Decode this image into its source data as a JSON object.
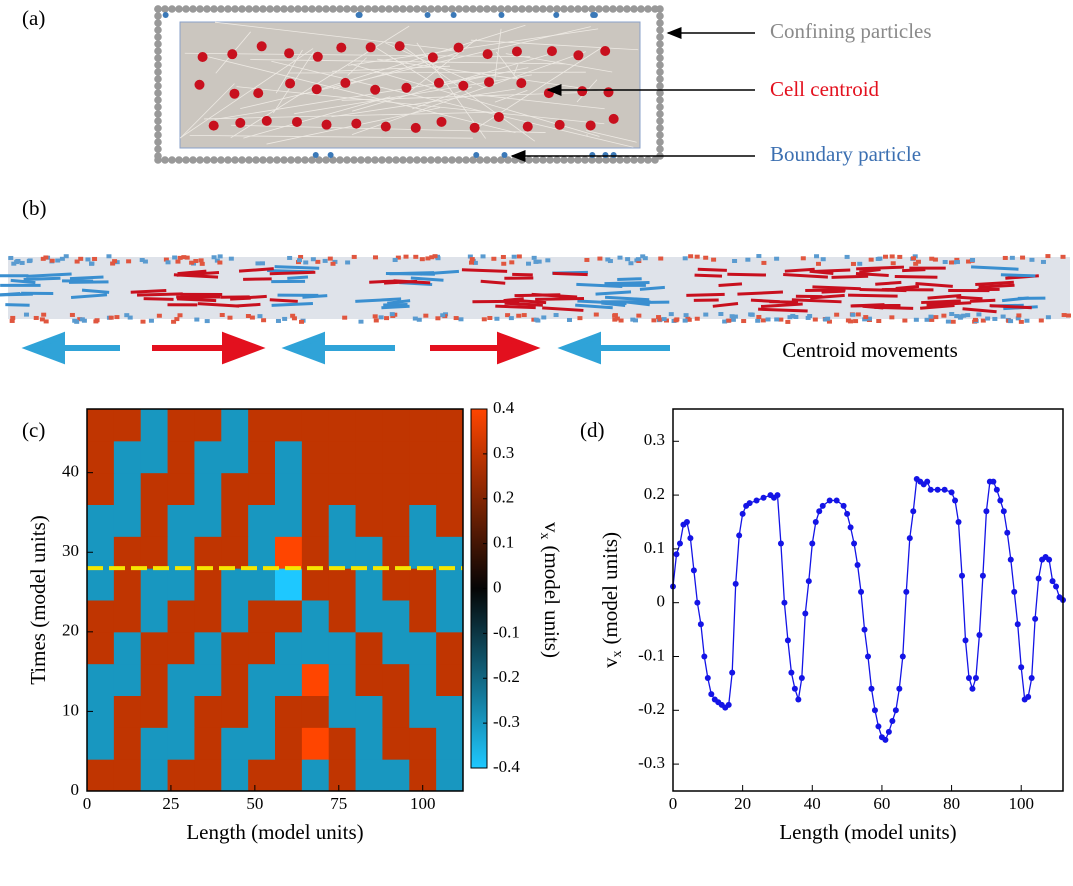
{
  "panels": {
    "a": "(a)",
    "b": "(b)",
    "c": "(c)",
    "d": "(d)"
  },
  "annotations": {
    "confining": "Confining particles",
    "centroid": "Cell centroid",
    "boundary": "Boundary particle",
    "movements": "Centroid movements"
  },
  "chart_data": [
    {
      "type": "heatmap",
      "xlabel": "Length (model units)",
      "ylabel": "Times (model units)",
      "colorbar_label": {
        "main": "v",
        "sub": "x",
        "rest": "(model units)"
      },
      "x": [
        4,
        12,
        20,
        28,
        36,
        44,
        52,
        60,
        68,
        76,
        84,
        92,
        100,
        108
      ],
      "y": [
        2,
        6,
        10,
        14,
        18,
        22,
        26,
        30,
        34,
        38,
        42,
        46
      ],
      "z": [
        [
          0.3,
          0.3,
          -0.3,
          0.3,
          0.3,
          -0.3,
          0.3,
          0.3,
          -0.3,
          0.3,
          -0.3,
          -0.3,
          0.3,
          -0.3
        ],
        [
          -0.3,
          0.3,
          -0.3,
          -0.3,
          0.3,
          -0.3,
          -0.3,
          0.3,
          0.4,
          0.3,
          -0.3,
          0.3,
          0.3,
          -0.3
        ],
        [
          -0.3,
          0.3,
          0.3,
          -0.3,
          0.3,
          0.3,
          -0.3,
          0.3,
          0.3,
          -0.3,
          -0.3,
          0.3,
          -0.3,
          -0.3
        ],
        [
          -0.3,
          -0.3,
          0.3,
          -0.3,
          -0.3,
          0.3,
          -0.3,
          -0.3,
          0.4,
          -0.3,
          0.3,
          0.3,
          -0.3,
          0.3
        ],
        [
          0.3,
          -0.3,
          0.3,
          0.3,
          -0.3,
          0.3,
          0.3,
          -0.3,
          -0.3,
          -0.3,
          0.3,
          -0.3,
          -0.3,
          0.3
        ],
        [
          0.3,
          0.3,
          -0.3,
          0.3,
          0.3,
          -0.3,
          0.3,
          0.3,
          -0.3,
          0.3,
          -0.3,
          -0.3,
          0.3,
          -0.3
        ],
        [
          -0.3,
          0.3,
          -0.3,
          -0.3,
          0.3,
          -0.3,
          -0.3,
          -0.4,
          0.3,
          0.3,
          -0.3,
          0.3,
          0.3,
          -0.3
        ],
        [
          -0.3,
          0.3,
          0.3,
          -0.3,
          0.3,
          0.3,
          -0.3,
          0.4,
          0.3,
          -0.3,
          -0.3,
          0.3,
          -0.3,
          -0.3
        ],
        [
          -0.3,
          -0.3,
          0.3,
          -0.3,
          -0.3,
          0.3,
          -0.3,
          -0.3,
          0.3,
          -0.3,
          0.3,
          0.3,
          -0.3,
          0.3
        ],
        [
          0.3,
          -0.3,
          0.3,
          0.3,
          -0.3,
          0.3,
          0.3,
          -0.3,
          0.3,
          0.3,
          0.3,
          0.3,
          0.3,
          0.3
        ],
        [
          0.3,
          -0.3,
          -0.3,
          0.3,
          -0.3,
          -0.3,
          0.3,
          -0.3,
          0.3,
          0.3,
          0.3,
          0.3,
          0.3,
          0.3
        ],
        [
          0.3,
          0.3,
          -0.3,
          0.3,
          0.3,
          -0.3,
          0.3,
          0.3,
          0.3,
          0.3,
          0.3,
          0.3,
          0.3,
          0.3
        ]
      ],
      "xlim": [
        0,
        112
      ],
      "xticks": [
        0,
        25,
        50,
        75,
        100
      ],
      "ylim": [
        0,
        48
      ],
      "yticks": [
        0,
        10,
        20,
        30,
        40
      ],
      "zlim": [
        -0.4,
        0.4
      ],
      "zticks": [
        0.4,
        0.3,
        0.2,
        0.1,
        0,
        -0.1,
        -0.2,
        -0.3,
        -0.4
      ],
      "colors": {
        "negative": "#1ec8ff",
        "zero": "#050505",
        "positive": "#ff4500"
      },
      "marker_line": {
        "y": 28,
        "color": "#f5e600"
      }
    },
    {
      "type": "line",
      "xlabel": "Length (model units)",
      "ylabel": {
        "main": "v",
        "sub": "x",
        "rest": "(model units)"
      },
      "color": "#1414e6",
      "x": [
        0,
        1,
        2,
        3,
        4,
        5,
        6,
        7,
        8,
        9,
        10,
        11,
        12,
        13,
        14,
        15,
        16,
        17,
        18,
        19,
        20,
        21,
        22,
        24,
        26,
        28,
        29,
        30,
        31,
        32,
        33,
        34,
        35,
        36,
        37,
        38,
        39,
        40,
        41,
        42,
        43,
        45,
        47,
        49,
        50,
        51,
        52,
        53,
        54,
        55,
        56,
        57,
        58,
        59,
        60,
        61,
        62,
        63,
        64,
        65,
        66,
        67,
        68,
        69,
        70,
        71,
        72,
        73,
        74,
        76,
        78,
        80,
        81,
        82,
        83,
        84,
        85,
        86,
        87,
        88,
        89,
        90,
        91,
        92,
        93,
        94,
        95,
        96,
        97,
        98,
        99,
        100,
        101,
        102,
        103,
        104,
        105,
        106,
        107,
        108,
        109,
        110,
        111,
        112
      ],
      "values": [
        0.03,
        0.09,
        0.11,
        0.145,
        0.15,
        0.12,
        0.06,
        0.0,
        -0.04,
        -0.1,
        -0.14,
        -0.17,
        -0.18,
        -0.185,
        -0.19,
        -0.195,
        -0.19,
        -0.13,
        0.035,
        0.125,
        0.165,
        0.18,
        0.185,
        0.19,
        0.195,
        0.2,
        0.195,
        0.2,
        0.11,
        0.0,
        -0.07,
        -0.13,
        -0.16,
        -0.18,
        -0.14,
        -0.02,
        0.04,
        0.11,
        0.15,
        0.17,
        0.18,
        0.19,
        0.19,
        0.18,
        0.165,
        0.14,
        0.11,
        0.07,
        0.02,
        -0.05,
        -0.1,
        -0.16,
        -0.2,
        -0.23,
        -0.25,
        -0.255,
        -0.24,
        -0.22,
        -0.2,
        -0.16,
        -0.1,
        0.02,
        0.12,
        0.17,
        0.23,
        0.225,
        0.22,
        0.225,
        0.21,
        0.21,
        0.21,
        0.205,
        0.19,
        0.15,
        0.05,
        -0.07,
        -0.14,
        -0.16,
        -0.14,
        -0.06,
        0.05,
        0.17,
        0.225,
        0.225,
        0.21,
        0.19,
        0.17,
        0.13,
        0.08,
        0.02,
        -0.04,
        -0.12,
        -0.18,
        -0.175,
        -0.14,
        -0.03,
        0.045,
        0.08,
        0.085,
        0.08,
        0.04,
        0.03,
        0.01,
        0.005
      ],
      "xlim": [
        0,
        112
      ],
      "xticks": [
        0,
        20,
        40,
        60,
        80,
        100
      ],
      "ylim": [
        -0.35,
        0.36
      ],
      "yticks": [
        0.3,
        0.2,
        0.1,
        0,
        -0.1,
        -0.2,
        -0.3
      ]
    }
  ]
}
